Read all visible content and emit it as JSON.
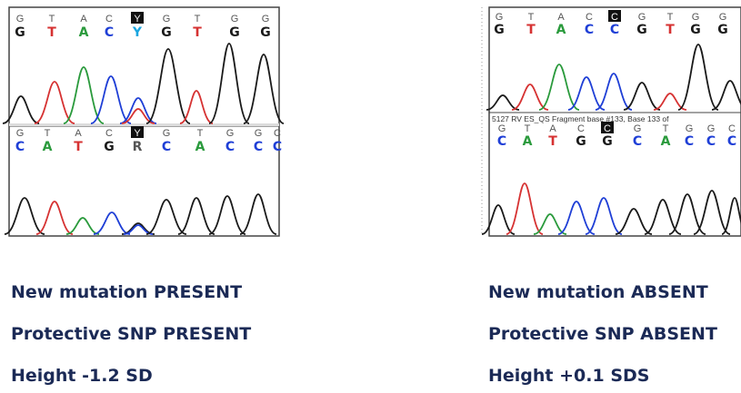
{
  "colors": {
    "A": "#2a9a3c",
    "C": "#1f3fd6",
    "G": "#1a1a1a",
    "T": "#d63232",
    "Y": "#1aa6e0",
    "caption": "#1b2a56"
  },
  "left": {
    "top_bases": [
      "G",
      "T",
      "A",
      "C",
      "Y",
      "G",
      "T",
      "G",
      "G"
    ],
    "top_calls": [
      "G",
      "T",
      "A",
      "C",
      "Y",
      "G",
      "T",
      "G",
      "G"
    ],
    "bottom_bases": [
      "G",
      "T",
      "A",
      "C",
      "Y",
      "G",
      "T",
      "G",
      "G",
      "C"
    ],
    "bottom_calls": [
      "C",
      "A",
      "T",
      "G",
      "R",
      "C",
      "A",
      "C",
      "C",
      "C"
    ],
    "captions": [
      "New mutation PRESENT",
      "Protective SNP PRESENT",
      "Height -1.2 SD"
    ]
  },
  "right": {
    "top_bases": [
      "G",
      "T",
      "A",
      "C",
      "C",
      "G",
      "T",
      "G",
      "G"
    ],
    "top_calls": [
      "G",
      "T",
      "A",
      "C",
      "C",
      "G",
      "T",
      "G",
      "G"
    ],
    "fragment_label": "5127 RV ES_QS Fragment base #133, Base 133 of",
    "bottom_bases": [
      "G",
      "T",
      "A",
      "C",
      "C",
      "G",
      "T",
      "G",
      "G",
      "C"
    ],
    "bottom_calls": [
      "C",
      "A",
      "T",
      "G",
      "G",
      "C",
      "A",
      "C",
      "C",
      "C"
    ],
    "captions": [
      "New mutation ABSENT",
      "Protective SNP ABSENT",
      "Height +0.1 SDS"
    ]
  }
}
